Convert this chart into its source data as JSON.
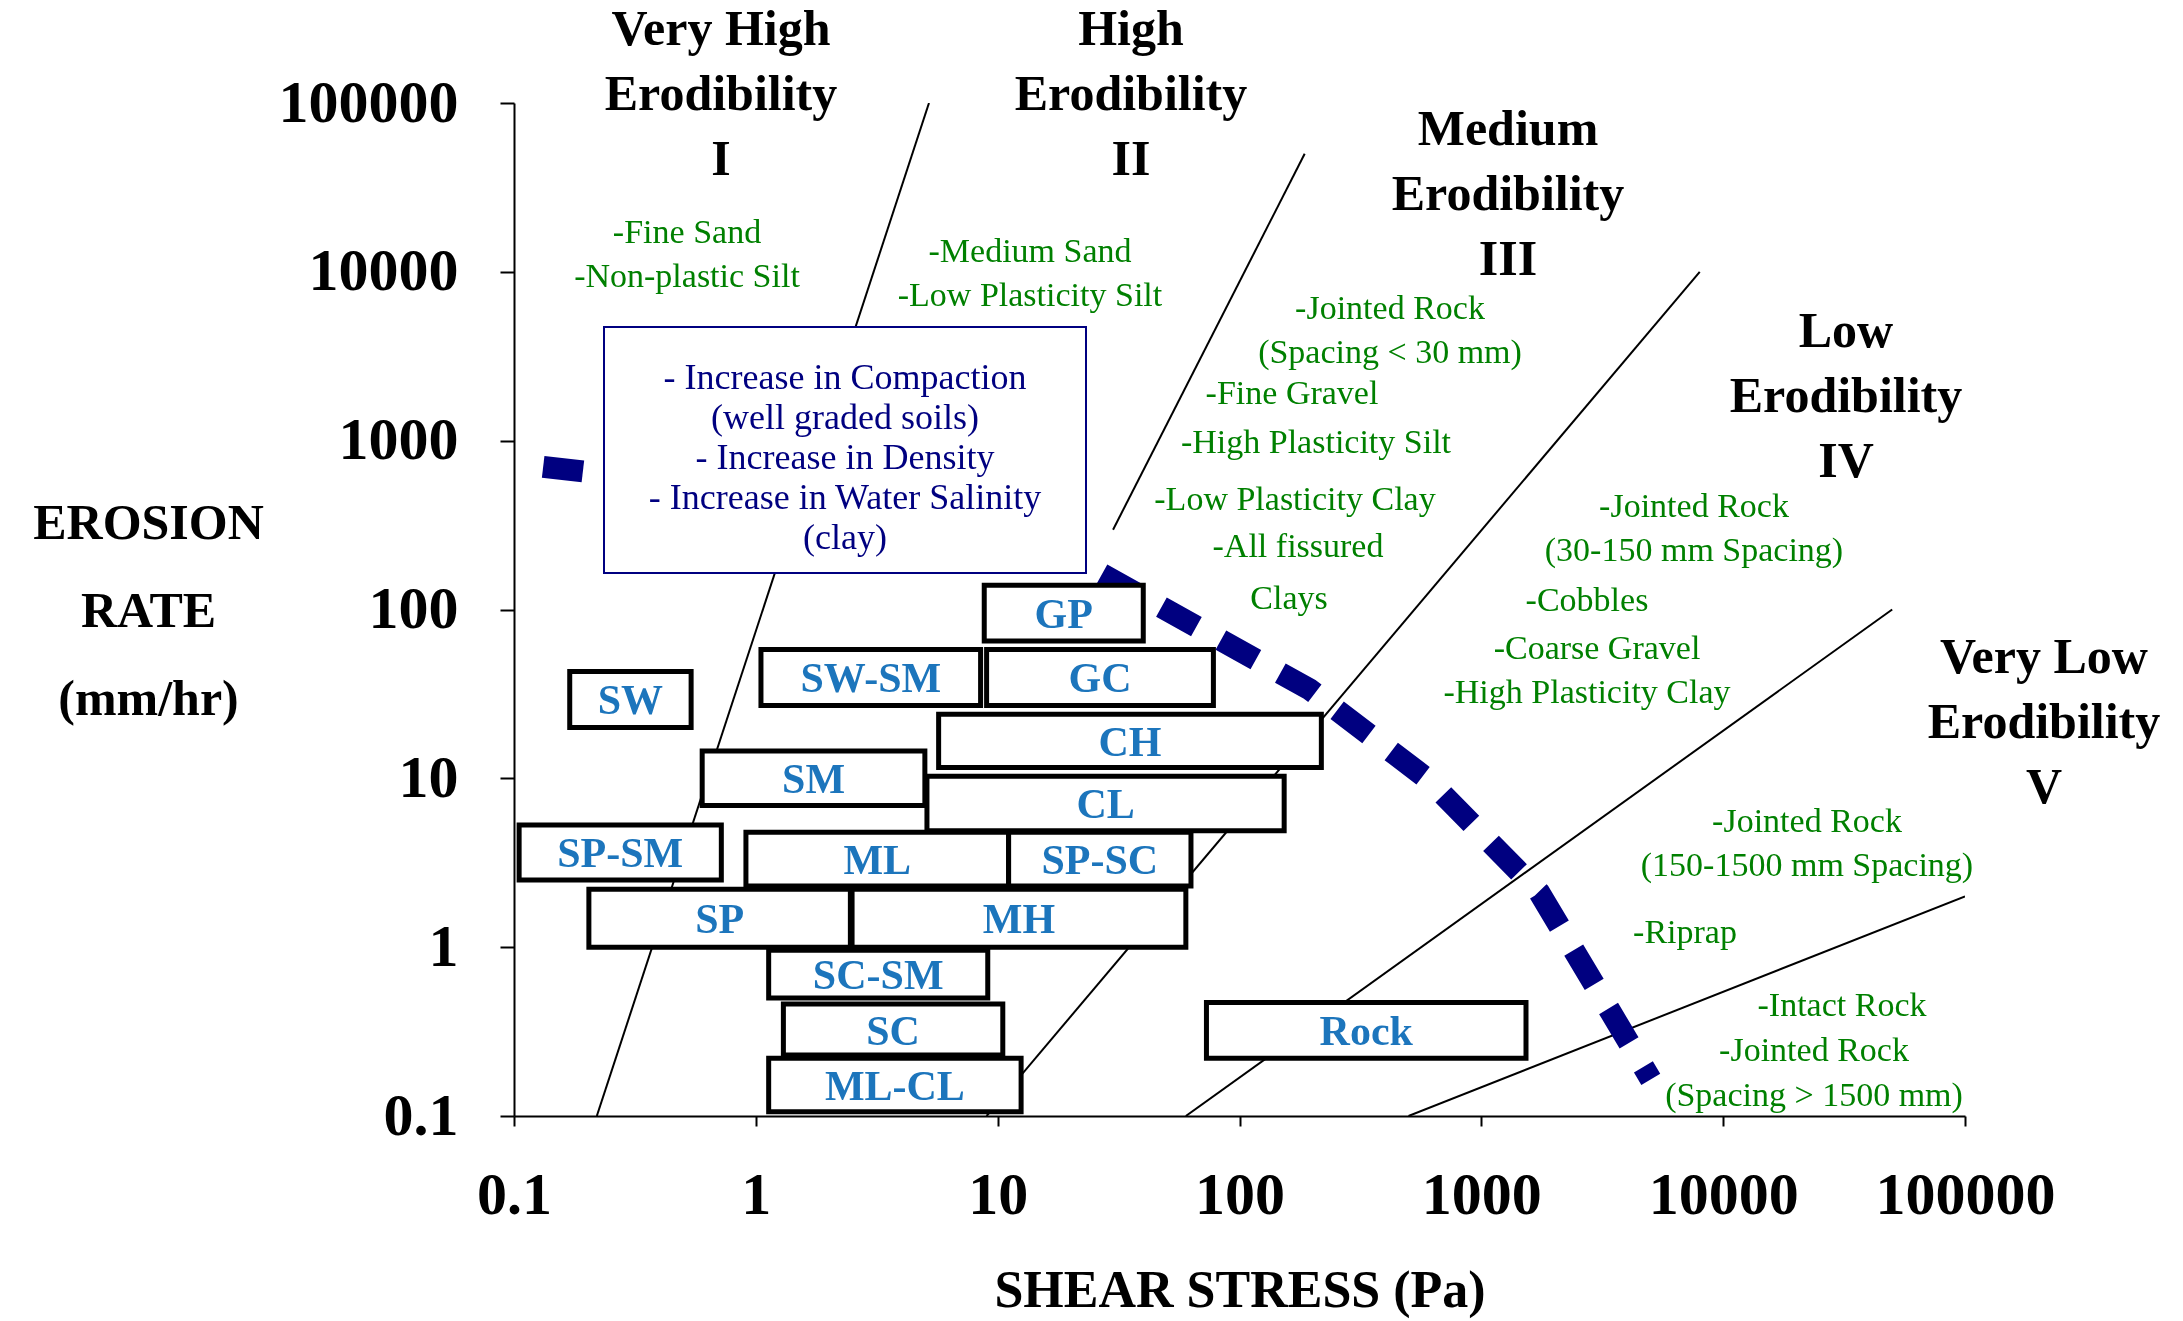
{
  "chart_data": {
    "type": "line",
    "xlabel": "SHEAR STRESS (Pa)",
    "ylabel": "EROSION RATE (mm/hr)",
    "xlim": [
      0.1,
      100000
    ],
    "ylim": [
      0.1,
      100000
    ],
    "xticks": [
      0.1,
      1,
      10,
      100,
      1000,
      10000,
      100000
    ],
    "yticks": [
      0.1,
      1,
      10,
      100,
      1000,
      10000,
      100000
    ],
    "log": "xy",
    "grid": false,
    "series": [
      {
        "color": "#000000",
        "x": [
          0.22,
          5.2
        ],
        "values": [
          0.1,
          100000
        ]
      },
      {
        "color": "#000000",
        "x": [
          30,
          186
        ],
        "values": [
          297,
          50000
        ]
      },
      {
        "color": "#000000",
        "x": [
          9.0,
          8000
        ],
        "values": [
          0.1,
          10000
        ]
      },
      {
        "color": "#000000",
        "x": [
          60,
          50000
        ],
        "values": [
          0.1,
          100
        ]
      },
      {
        "color": "#000000",
        "x": [
          500,
          100000
        ],
        "values": [
          0.1,
          2.0
        ]
      },
      {
        "color": "#000080",
        "line_style": "dashed",
        "x": [
          0.132,
          0.237,
          1,
          27,
          196,
          605,
          1740,
          5020
        ],
        "values": [
          700,
          635,
          null,
          162,
          33.5,
          9.8,
          2.1,
          0.165
        ]
      },
      {
        "type": "area",
        "name": "GP",
        "color": "#000000",
        "x": [
          8.8,
          40,
          40,
          8.8,
          8.8
        ],
        "values": [
          65,
          65,
          139,
          139,
          65
        ]
      },
      {
        "type": "area",
        "name": "SW-SM",
        "color": "#000000",
        "x": [
          1.05,
          8.5,
          8.5,
          1.05,
          1.05
        ],
        "values": [
          27,
          27,
          58,
          58,
          27
        ]
      },
      {
        "type": "area",
        "name": "GC",
        "color": "#000000",
        "x": [
          9.0,
          78,
          78,
          9.0,
          9.0
        ],
        "values": [
          27,
          27,
          58,
          58,
          27
        ]
      },
      {
        "type": "area",
        "name": "SW",
        "color": "#000000",
        "x": [
          0.17,
          0.54,
          0.54,
          0.17,
          0.17
        ],
        "values": [
          20,
          20,
          43,
          43,
          20
        ]
      },
      {
        "type": "area",
        "name": "CH",
        "color": "#000000",
        "x": [
          5.7,
          218,
          218,
          5.7,
          5.7
        ],
        "values": [
          11.6,
          11.6,
          24,
          24,
          11.6
        ]
      },
      {
        "type": "area",
        "name": "SM",
        "color": "#000000",
        "x": [
          0.6,
          5.0,
          5.0,
          0.6,
          0.6
        ],
        "values": [
          6.9,
          6.9,
          14.5,
          14.5,
          6.9
        ]
      },
      {
        "type": "area",
        "name": "CL",
        "color": "#000000",
        "x": [
          5.1,
          153,
          153,
          5.1,
          5.1
        ],
        "values": [
          4.9,
          4.9,
          10.3,
          10.3,
          4.9
        ]
      },
      {
        "type": "area",
        "name": "SP-SM",
        "color": "#000000",
        "x": [
          0.105,
          0.72,
          0.72,
          0.105,
          0.105
        ],
        "values": [
          2.5,
          2.5,
          5.3,
          5.3,
          2.5
        ]
      },
      {
        "type": "area",
        "name": "ML",
        "color": "#000000",
        "x": [
          0.91,
          11.1,
          11.1,
          0.91,
          0.91
        ],
        "values": [
          2.3,
          2.3,
          4.8,
          4.8,
          2.3
        ]
      },
      {
        "type": "area",
        "name": "SP-SC",
        "color": "#000000",
        "x": [
          11.1,
          63,
          63,
          11.1,
          11.1
        ],
        "values": [
          2.3,
          2.3,
          4.8,
          4.8,
          2.3
        ]
      },
      {
        "type": "area",
        "name": "SP",
        "color": "#000000",
        "x": [
          0.204,
          2.46,
          2.46,
          0.204,
          0.204
        ],
        "values": [
          1.0,
          1.0,
          2.2,
          2.2,
          1.0
        ]
      },
      {
        "type": "area",
        "name": "MH",
        "color": "#000000",
        "x": [
          2.5,
          60,
          60,
          2.5,
          2.5
        ],
        "values": [
          1.0,
          1.0,
          2.2,
          2.2,
          1.0
        ]
      },
      {
        "type": "area",
        "name": "SC-SM",
        "color": "#000000",
        "x": [
          1.13,
          9.1,
          9.1,
          1.13,
          1.13
        ],
        "values": [
          0.5,
          0.5,
          0.96,
          0.96,
          0.5
        ]
      },
      {
        "type": "area",
        "name": "SC",
        "color": "#000000",
        "x": [
          1.3,
          10.5,
          10.5,
          1.3,
          1.3
        ],
        "values": [
          0.23,
          0.23,
          0.46,
          0.46,
          0.23
        ]
      },
      {
        "type": "area",
        "name": "ML-CL",
        "color": "#000000",
        "x": [
          1.13,
          12.5,
          12.5,
          1.13,
          1.13
        ],
        "values": [
          0.106,
          0.106,
          0.22,
          0.22,
          0.106
        ]
      },
      {
        "type": "area",
        "name": "Rock",
        "color": "#000000",
        "x": [
          73,
          1530,
          1530,
          73,
          73
        ],
        "values": [
          0.22,
          0.22,
          0.47,
          0.47,
          0.22
        ]
      }
    ],
    "annotations": [
      "Very High\nErodibility\nI",
      "High\nErodibility\nII",
      "Medium\nErodibility\nIII",
      "Low\nErodibility\nIV",
      "Very Low\nErodibility\nV",
      "- Increase in Compaction\n(well graded soils)\n- Increase in Density\n- Increase in Water Salinity\n(clay)",
      "-Fine Sand\n-Non-plastic Silt",
      "-Medium Sand\n-Low Plasticity Silt",
      "-Jointed Rock\n(Spacing < 30 mm)",
      "-Fine Gravel",
      "-High Plasticity Silt",
      "-Low Plasticity Clay",
      "-All fissured",
      "Clays",
      "-Jointed Rock\n(30-150 mm Spacing)",
      "-Cobbles",
      "-Coarse Gravel",
      "-High Plasticity Clay",
      "-Jointed Rock\n(150-1500 mm Spacing)",
      "-Riprap",
      "-Intact Rock",
      "-Jointed Rock",
      "(Spacing > 1500 mm)"
    ]
  }
}
